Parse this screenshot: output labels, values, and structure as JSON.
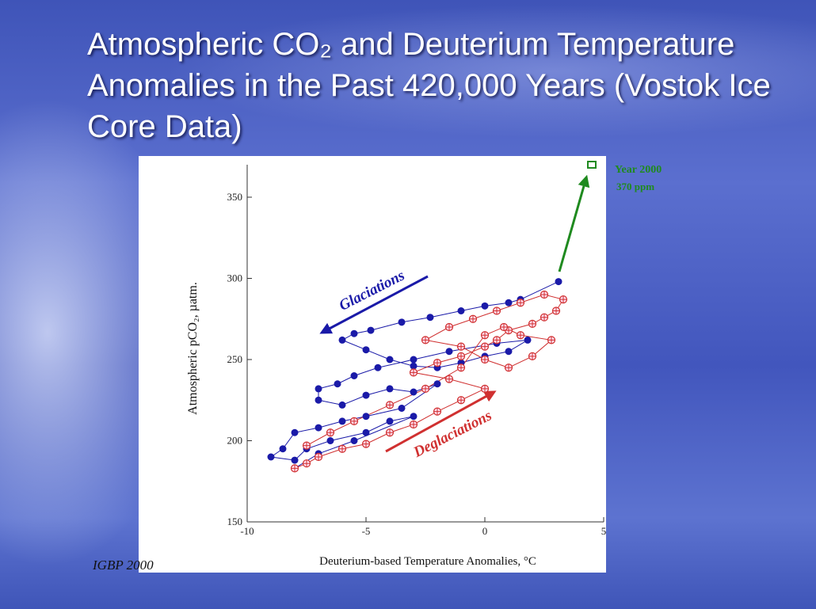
{
  "chart_data": {
    "type": "scatter",
    "title": "Atmospheric CO₂ and Deuterium Temperature Anomalies in the Past 420,000 Years (Vostok Ice Core Data)",
    "x_label": "Deuterium-based Temperature Anomalies, °C",
    "y_label": "Atmospheric pCO₂, µatm.",
    "source": "IGBP 2000",
    "xlim": [
      -10,
      5
    ],
    "ylim": [
      150,
      370
    ],
    "xticks": [
      -10,
      -5,
      0,
      5
    ],
    "yticks": [
      150,
      200,
      250,
      300,
      350
    ],
    "series": [
      {
        "name": "Glaciations",
        "color": "#1a1aa8",
        "marker": "circle",
        "x": [
          3.1,
          1.5,
          1,
          0,
          -1,
          -2.3,
          -3.5,
          -4.8,
          -5.5,
          -6,
          -5,
          -4,
          -3,
          -2,
          -1,
          0,
          1,
          1.8,
          0.5,
          -1.5,
          -3,
          -4.5,
          -5.5,
          -6.2,
          -7,
          -7,
          -6,
          -5,
          -4,
          -3,
          -2,
          -3.5,
          -5,
          -6,
          -7,
          -8,
          -8.5,
          -9,
          -8,
          -7.5,
          -6.5,
          -5,
          -4,
          -3,
          -5.5,
          -7,
          -8
        ],
        "y": [
          298,
          287,
          285,
          283,
          280,
          276,
          273,
          268,
          266,
          262,
          256,
          250,
          246,
          245,
          248,
          252,
          255,
          262,
          260,
          255,
          250,
          245,
          240,
          235,
          232,
          225,
          222,
          228,
          232,
          230,
          235,
          220,
          215,
          212,
          208,
          205,
          195,
          190,
          188,
          195,
          200,
          205,
          212,
          215,
          200,
          192,
          183
        ]
      },
      {
        "name": "Deglaciations",
        "color": "#d03030",
        "marker": "crossed-circle",
        "x": [
          -8,
          -7.5,
          -7,
          -6,
          -5,
          -4,
          -3,
          -2,
          -1,
          0,
          -1.5,
          -3,
          -2,
          -1,
          0,
          0.5,
          1,
          2,
          2.5,
          3,
          3.3,
          2.5,
          1.5,
          0.5,
          -0.5,
          -1.5,
          -2.5,
          -1,
          0,
          1,
          2,
          2.8,
          1.5,
          0.8,
          0,
          -1,
          -2.5,
          -4,
          -5.5,
          -6.5,
          -7.5
        ],
        "y": [
          183,
          186,
          190,
          195,
          198,
          205,
          210,
          218,
          225,
          232,
          238,
          242,
          248,
          252,
          258,
          262,
          268,
          272,
          276,
          280,
          287,
          290,
          285,
          280,
          275,
          270,
          262,
          258,
          250,
          245,
          252,
          262,
          265,
          270,
          265,
          245,
          232,
          222,
          212,
          205,
          197
        ]
      },
      {
        "name": "Year 2000",
        "color": "#1f8a1f",
        "marker": "square",
        "x": [
          4.5
        ],
        "y": [
          370
        ],
        "value_labels": [
          "370 ppm"
        ]
      }
    ]
  }
}
